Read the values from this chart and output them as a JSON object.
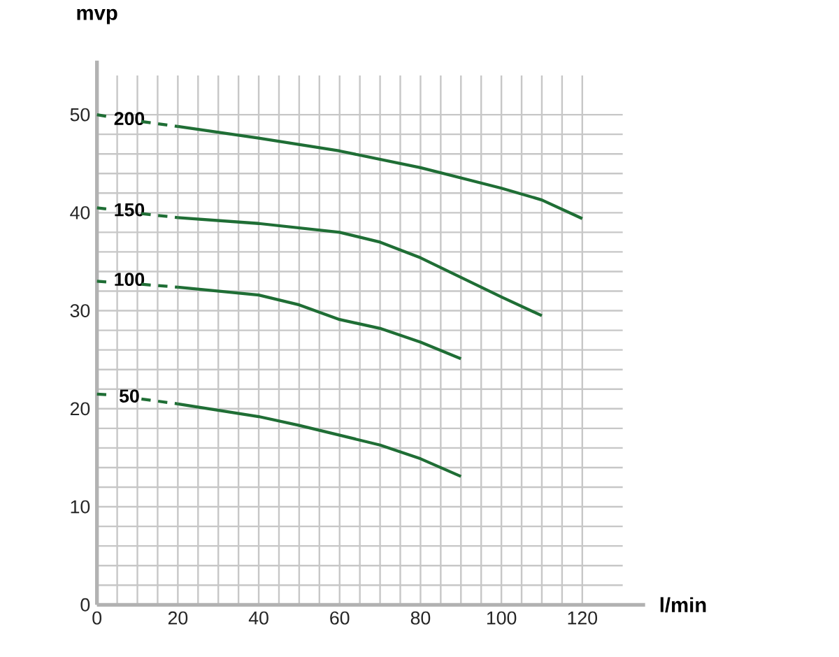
{
  "chart_data": {
    "type": "line",
    "xlabel": "l/min",
    "ylabel": "mvp",
    "xlim": [
      0,
      130
    ],
    "ylim": [
      0,
      54
    ],
    "xticks": [
      0,
      20,
      40,
      60,
      80,
      100,
      120
    ],
    "yticks": [
      0,
      10,
      20,
      30,
      40,
      50
    ],
    "grid": true,
    "marker": "none",
    "series": [
      {
        "name": "200",
        "color": "#1f6e35",
        "line_style": "solid",
        "x": [
          20,
          40,
          60,
          80,
          100,
          110,
          120
        ],
        "values": [
          48.8,
          47.6,
          46.3,
          44.6,
          42.5,
          41.3,
          39.4
        ]
      },
      {
        "name": "150",
        "color": "#1f6e35",
        "line_style": "solid",
        "x": [
          20,
          40,
          60,
          70,
          80,
          90,
          100,
          110
        ],
        "values": [
          39.5,
          38.9,
          38.0,
          37.0,
          35.4,
          33.4,
          31.4,
          29.5
        ]
      },
      {
        "name": "100",
        "color": "#1f6e35",
        "line_style": "solid",
        "x": [
          20,
          40,
          50,
          60,
          70,
          80,
          90
        ],
        "values": [
          32.4,
          31.6,
          30.6,
          29.1,
          28.2,
          26.8,
          25.1
        ]
      },
      {
        "name": "50",
        "color": "#1f6e35",
        "line_style": "solid",
        "x": [
          20,
          40,
          50,
          60,
          70,
          80,
          90
        ],
        "values": [
          20.5,
          19.2,
          18.3,
          17.3,
          16.3,
          14.9,
          13.1
        ]
      },
      {
        "color": "#1f6e35",
        "line_style": "dashed",
        "x": [
          0,
          4,
          8,
          11,
          20
        ],
        "values": [
          50.0,
          49.7,
          null,
          49.3,
          48.8
        ]
      },
      {
        "color": "#1f6e35",
        "line_style": "dashed",
        "x": [
          0,
          4,
          8,
          11,
          20
        ],
        "values": [
          40.5,
          40.3,
          null,
          39.9,
          39.5
        ]
      },
      {
        "color": "#1f6e35",
        "line_style": "dashed",
        "x": [
          0,
          4,
          8,
          11,
          20
        ],
        "values": [
          33.0,
          32.9,
          null,
          32.7,
          32.4
        ]
      },
      {
        "color": "#1f6e35",
        "line_style": "dashed",
        "x": [
          0,
          4,
          8,
          11,
          20
        ],
        "values": [
          21.5,
          21.4,
          null,
          21.0,
          20.5
        ]
      }
    ]
  }
}
